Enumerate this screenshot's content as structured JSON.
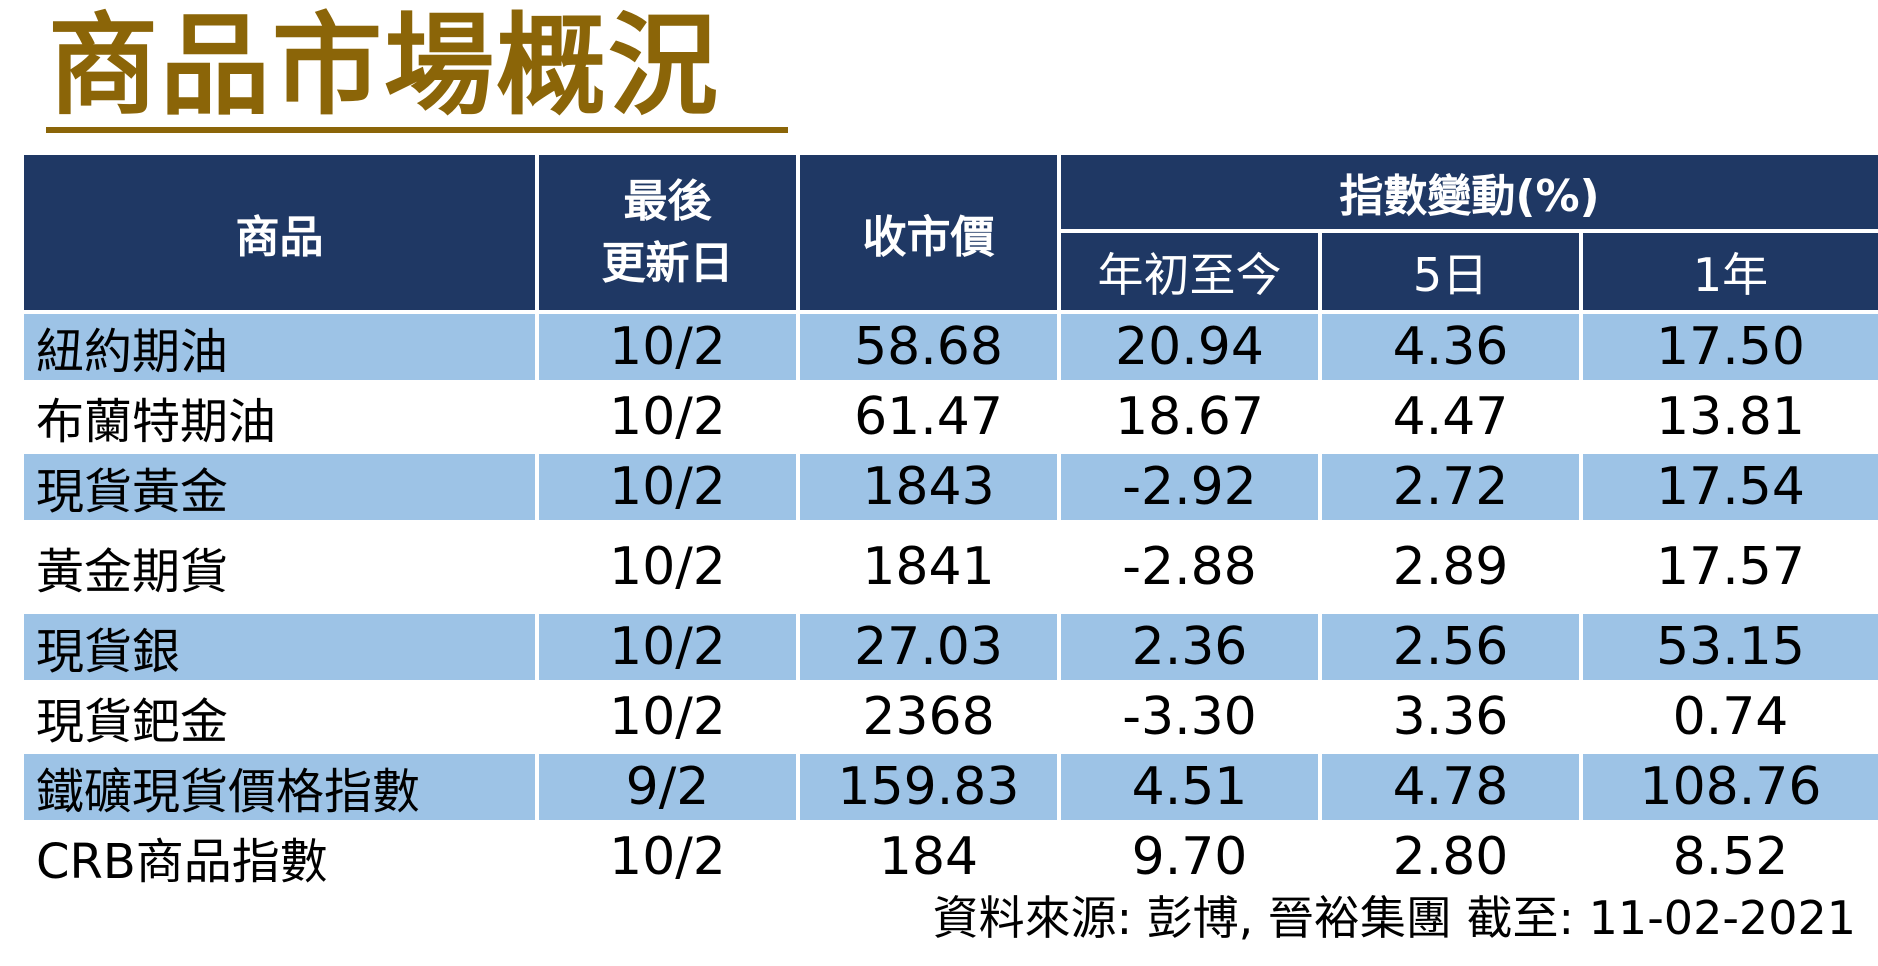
{
  "title": "商品市場概況",
  "table": {
    "headers": {
      "commodity": "商品",
      "last_update_line1": "最後",
      "last_update_line2": "更新日",
      "close_price": "收市價",
      "index_change": "指數變動(%)",
      "ytd": "年初至今",
      "five_day": "5日",
      "one_year": "1年"
    },
    "rows": [
      {
        "name": "紐約期油",
        "date": "10/2",
        "close": "58.68",
        "ytd": "20.94",
        "d5": "4.36",
        "y1": "17.50"
      },
      {
        "name": "布蘭特期油",
        "date": "10/2",
        "close": "61.47",
        "ytd": "18.67",
        "d5": "4.47",
        "y1": "13.81"
      },
      {
        "name": "現貨黃金",
        "date": "10/2",
        "close": "1843",
        "ytd": "-2.92",
        "d5": "2.72",
        "y1": "17.54"
      },
      {
        "name": "黃金期貨",
        "date": "10/2",
        "close": "1841",
        "ytd": "-2.88",
        "d5": "2.89",
        "y1": "17.57"
      },
      {
        "name": "現貨銀",
        "date": "10/2",
        "close": "27.03",
        "ytd": "2.36",
        "d5": "2.56",
        "y1": "53.15"
      },
      {
        "name": "現貨鈀金",
        "date": "10/2",
        "close": "2368",
        "ytd": "-3.30",
        "d5": "3.36",
        "y1": "0.74"
      },
      {
        "name": "鐵礦現貨價格指數",
        "date": "9/2",
        "close": "159.83",
        "ytd": "4.51",
        "d5": "4.78",
        "y1": "108.76"
      },
      {
        "name": "CRB商品指數",
        "date": "10/2",
        "close": "184",
        "ytd": "9.70",
        "d5": "2.80",
        "y1": "8.52"
      }
    ]
  },
  "source_note": "資料來源: 彭博, 晉裕集團 截至:  11-02-2021",
  "colors": {
    "title": "#8B6508",
    "header_bg": "#1F3864",
    "header_text": "#FFFFFF",
    "row_shade": "#9DC3E6"
  }
}
